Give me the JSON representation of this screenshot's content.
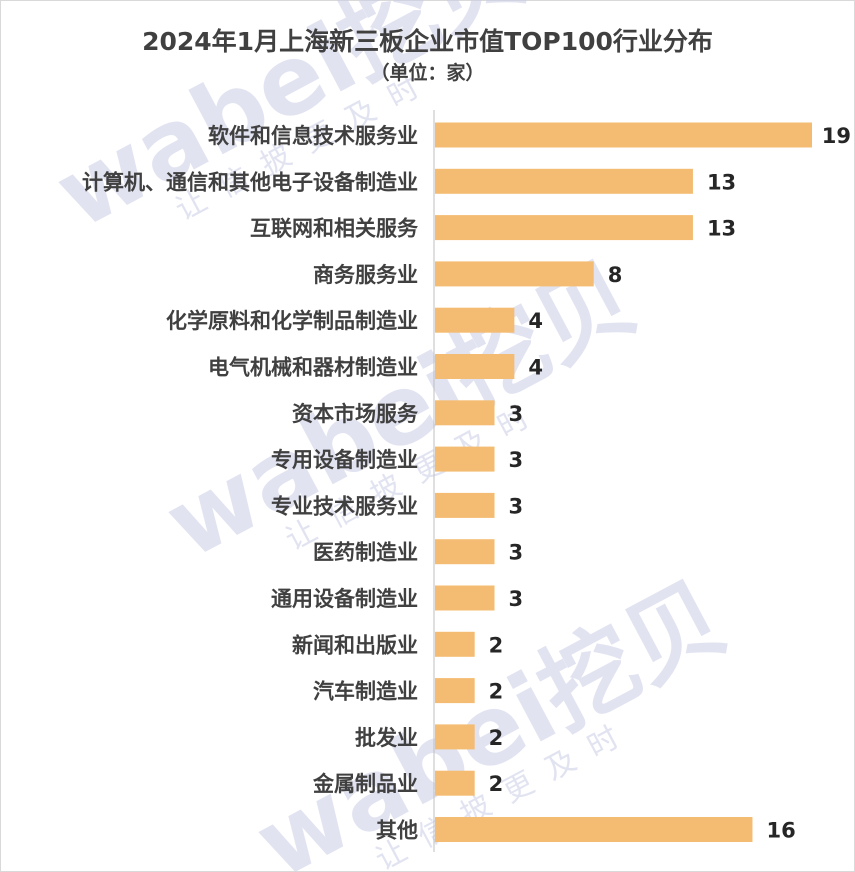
{
  "title": "2024年1月上海新三板企业市值TOP100行业分布",
  "subtitle": "（单位：家）",
  "watermark": {
    "brand": "wabei挖贝",
    "slogan": "让信披更及时"
  },
  "colors": {
    "bar": "#F4BC72",
    "axis": "#bfbfbf",
    "text": "#404040"
  },
  "chart_data": {
    "type": "bar",
    "orientation": "horizontal",
    "title": "2024年1月上海新三板企业市值TOP100行业分布",
    "subtitle": "（单位：家）",
    "categories": [
      "软件和信息技术服务业",
      "计算机、通信和其他电子设备制造业",
      "互联网和相关服务",
      "商务服务业",
      "化学原料和化学制品制造业",
      "电气机械和器材制造业",
      "资本市场服务",
      "专用设备制造业",
      "专业技术服务业",
      "医药制造业",
      "通用设备制造业",
      "新闻和出版业",
      "汽车制造业",
      "批发业",
      "金属制品业",
      "其他"
    ],
    "values": [
      19,
      13,
      13,
      8,
      4,
      4,
      3,
      3,
      3,
      3,
      3,
      2,
      2,
      2,
      2,
      16
    ],
    "xlim": [
      0,
      19
    ],
    "grid": false,
    "legend": "none",
    "data_labels": true
  }
}
